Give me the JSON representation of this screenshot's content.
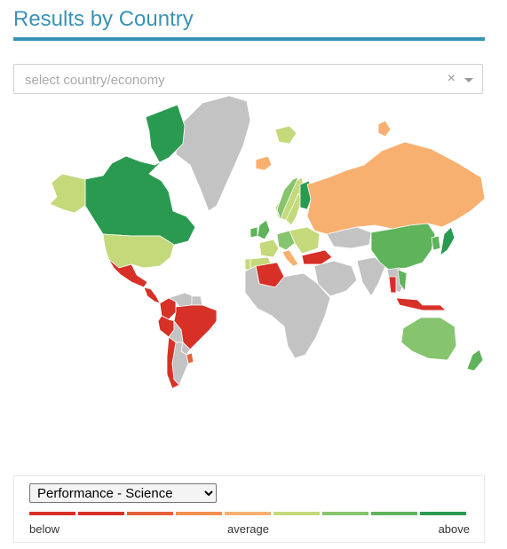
{
  "header": {
    "title": "Results by Country"
  },
  "search": {
    "placeholder": "select country/economy",
    "value": "",
    "clear_glyph": "×"
  },
  "colors": {
    "accent": "#3a92b5",
    "no_data": "#c3c3c3",
    "scale": [
      "#d73027",
      "#d73027",
      "#e4623a",
      "#f08f4f",
      "#f8b070",
      "#c4d97a",
      "#86c46e",
      "#5fb35b",
      "#2b9a51"
    ]
  },
  "legend": {
    "measure_selected": "Performance - Science",
    "measure_options": [
      "Performance - Science"
    ],
    "below_label": "below",
    "average_label": "average",
    "above_label": "above"
  },
  "map": {
    "regions": [
      {
        "name": "canada",
        "level": 8
      },
      {
        "name": "alaska",
        "level": 5
      },
      {
        "name": "greenland",
        "level": null
      },
      {
        "name": "usa",
        "level": 5
      },
      {
        "name": "mexico",
        "level": 0
      },
      {
        "name": "central-america",
        "level": 0
      },
      {
        "name": "colombia",
        "level": 0
      },
      {
        "name": "venezuela",
        "level": null
      },
      {
        "name": "guianas",
        "level": null
      },
      {
        "name": "brazil",
        "level": 0
      },
      {
        "name": "peru",
        "level": 0
      },
      {
        "name": "bolivia",
        "level": null
      },
      {
        "name": "chile",
        "level": 0
      },
      {
        "name": "argentina",
        "level": null
      },
      {
        "name": "paraguay",
        "level": null
      },
      {
        "name": "uruguay",
        "level": 2
      },
      {
        "name": "iceland",
        "level": 5
      },
      {
        "name": "norway",
        "level": 6
      },
      {
        "name": "sweden",
        "level": 5
      },
      {
        "name": "finland",
        "level": 8
      },
      {
        "name": "uk",
        "level": 7
      },
      {
        "name": "ireland",
        "level": 7
      },
      {
        "name": "france",
        "level": 5
      },
      {
        "name": "spain",
        "level": 5
      },
      {
        "name": "portugal",
        "level": 5
      },
      {
        "name": "germany",
        "level": 6
      },
      {
        "name": "italy",
        "level": 4
      },
      {
        "name": "eastern-europe",
        "level": 5
      },
      {
        "name": "russia",
        "level": 4
      },
      {
        "name": "turkey",
        "level": 0
      },
      {
        "name": "algeria",
        "level": 0
      },
      {
        "name": "africa",
        "level": null
      },
      {
        "name": "middle-east",
        "level": null
      },
      {
        "name": "kazakhstan",
        "level": null
      },
      {
        "name": "china",
        "level": 7
      },
      {
        "name": "japan",
        "level": 8
      },
      {
        "name": "korea",
        "level": 7
      },
      {
        "name": "india",
        "level": null
      },
      {
        "name": "southeast-asia",
        "level": null
      },
      {
        "name": "thailand",
        "level": 0
      },
      {
        "name": "vietnam",
        "level": 7
      },
      {
        "name": "indonesia",
        "level": 0
      },
      {
        "name": "australia",
        "level": 6
      },
      {
        "name": "new-zealand",
        "level": 7
      },
      {
        "name": "svalbard",
        "level": 5
      },
      {
        "name": "svalbard-east",
        "level": 4
      },
      {
        "name": "novaya-zemlya",
        "level": 4
      }
    ]
  }
}
